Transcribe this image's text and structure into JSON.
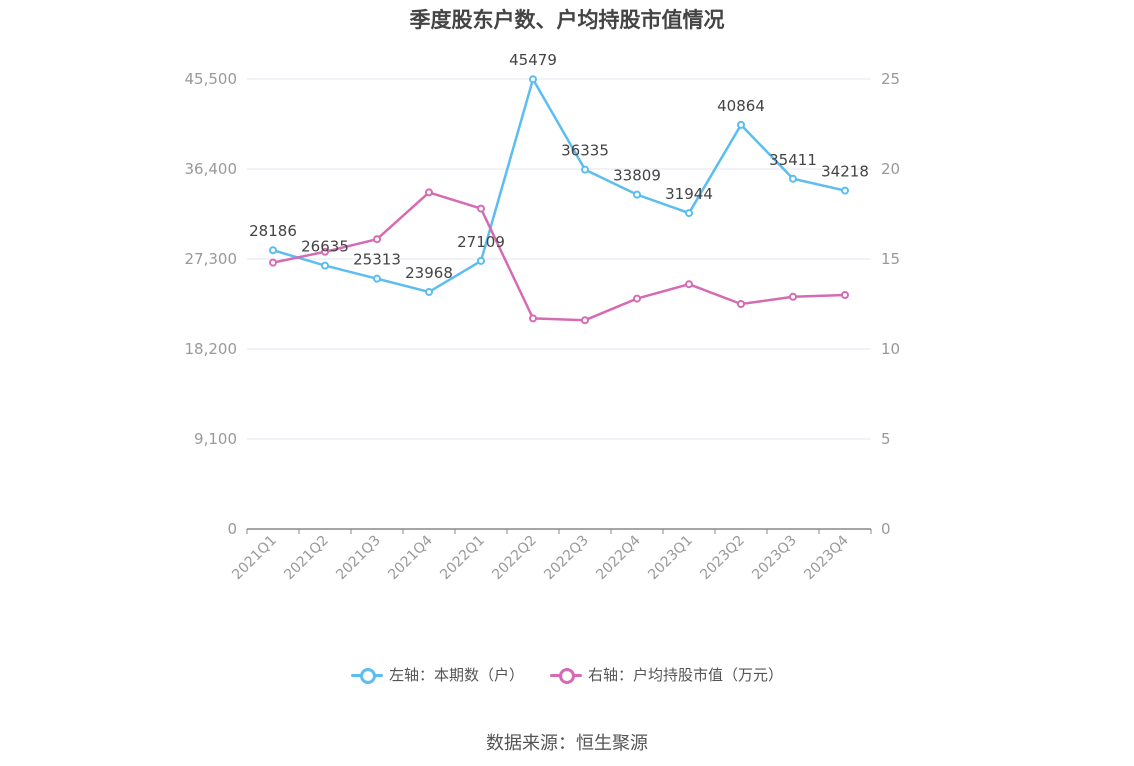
{
  "chart_data": {
    "type": "line",
    "title": "季度股东户数、户均持股市值情况",
    "categories": [
      "2021Q1",
      "2021Q2",
      "2021Q3",
      "2021Q4",
      "2022Q1",
      "2022Q2",
      "2022Q3",
      "2022Q4",
      "2023Q1",
      "2023Q2",
      "2023Q3",
      "2023Q4"
    ],
    "left_axis": {
      "ticks": [
        "0",
        "9,100",
        "18,200",
        "27,300",
        "36,400",
        "45,500"
      ],
      "ylim": [
        0,
        45500
      ]
    },
    "right_axis": {
      "ticks": [
        "0",
        "5",
        "10",
        "15",
        "20",
        "25"
      ],
      "ylim": [
        0,
        25
      ]
    },
    "series": [
      {
        "name": "左轴：本期数（户）",
        "axis": "left",
        "color": "#5bbdf0",
        "values": [
          28186,
          26635,
          25313,
          23968,
          27109,
          45479,
          36335,
          33809,
          31944,
          40864,
          35411,
          34218
        ],
        "labels": [
          "28186",
          "26635",
          "25313",
          "23968",
          "27109",
          "45479",
          "36335",
          "33809",
          "31944",
          "40864",
          "35411",
          "34218"
        ]
      },
      {
        "name": "右轴：户均持股市值（万元）",
        "axis": "right",
        "color": "#d56bb3",
        "values": [
          14.8,
          15.4,
          16.1,
          18.7,
          17.8,
          11.7,
          11.6,
          12.8,
          13.6,
          12.5,
          12.9,
          13.0
        ]
      }
    ],
    "legend_position": "bottom",
    "grid": true
  },
  "source": "数据来源：恒生聚源"
}
